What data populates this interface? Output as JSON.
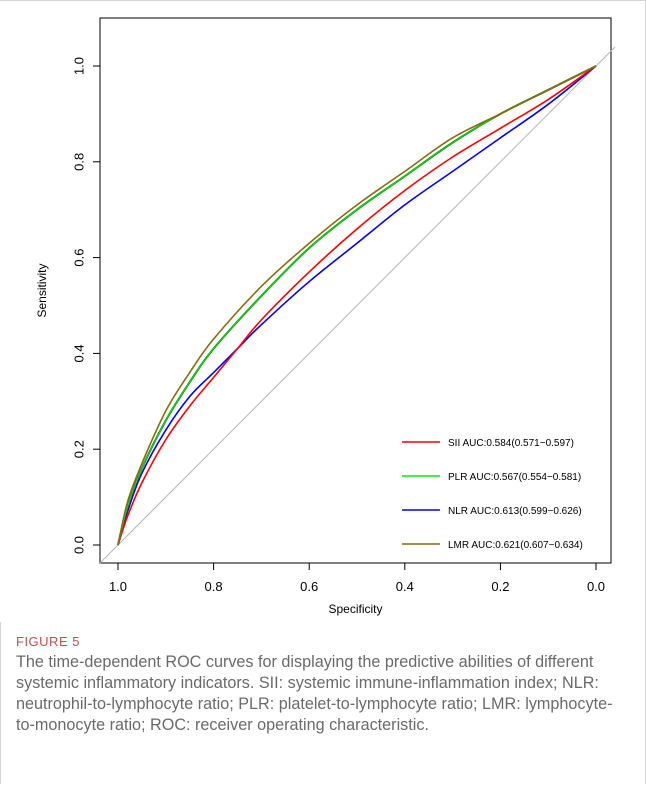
{
  "figure": {
    "label": "FIGURE 5",
    "caption": "The time-dependent ROC curves for displaying the predictive abilities of different systemic inflammatory indicators. SII: systemic immune-inflammation index; NLR: neutrophil-to-lymphocyte ratio; PLR: platelet-to-lymphocyte ratio; LMR: lymphocyte-to-monocyte ratio; ROC: receiver operating characteristic."
  },
  "chart_data": {
    "type": "line",
    "title": "",
    "xlabel": "Specificity",
    "ylabel": "Sensitivity",
    "xlim": [
      1.0,
      0.0
    ],
    "ylim": [
      0.0,
      1.0
    ],
    "x_reversed": true,
    "grid": false,
    "legend_position": "bottom-right",
    "x_ticks": [
      "1.0",
      "0.8",
      "0.6",
      "0.4",
      "0.2",
      "0.0"
    ],
    "y_ticks": [
      "0.0",
      "0.2",
      "0.4",
      "0.6",
      "0.8",
      "1.0"
    ],
    "reference_line": {
      "from": [
        1.0,
        0.0
      ],
      "to": [
        0.0,
        1.0
      ],
      "color": "#b4b4b4"
    },
    "series": [
      {
        "name": "SII AUC:0.584(0.571−0.597)",
        "color": "#ff0000",
        "x": [
          1.0,
          0.98,
          0.95,
          0.9,
          0.85,
          0.8,
          0.75,
          0.7,
          0.6,
          0.5,
          0.4,
          0.3,
          0.2,
          0.1,
          0.0
        ],
        "y": [
          0.0,
          0.06,
          0.13,
          0.22,
          0.29,
          0.35,
          0.41,
          0.47,
          0.57,
          0.66,
          0.74,
          0.81,
          0.87,
          0.93,
          1.0
        ]
      },
      {
        "name": "PLR AUC:0.567(0.554−0.581)",
        "color": "#00ee00",
        "x": [
          1.0,
          0.98,
          0.95,
          0.9,
          0.85,
          0.8,
          0.7,
          0.6,
          0.5,
          0.4,
          0.3,
          0.2,
          0.1,
          0.0
        ],
        "y": [
          0.0,
          0.08,
          0.16,
          0.26,
          0.34,
          0.41,
          0.52,
          0.62,
          0.7,
          0.77,
          0.84,
          0.9,
          0.95,
          1.0
        ]
      },
      {
        "name": "NLR AUC:0.613(0.599−0.626)",
        "color": "#0000ff",
        "x": [
          1.0,
          0.98,
          0.95,
          0.9,
          0.85,
          0.8,
          0.75,
          0.7,
          0.6,
          0.5,
          0.4,
          0.3,
          0.2,
          0.1,
          0.0
        ],
        "y": [
          0.0,
          0.07,
          0.15,
          0.24,
          0.31,
          0.36,
          0.41,
          0.46,
          0.55,
          0.63,
          0.71,
          0.78,
          0.85,
          0.92,
          1.0
        ]
      },
      {
        "name": "LMR AUC:0.621(0.607−0.634)",
        "color": "#8b6914",
        "x": [
          1.0,
          0.98,
          0.95,
          0.9,
          0.85,
          0.8,
          0.7,
          0.6,
          0.5,
          0.4,
          0.3,
          0.2,
          0.1,
          0.0
        ],
        "y": [
          0.0,
          0.09,
          0.17,
          0.28,
          0.36,
          0.43,
          0.54,
          0.63,
          0.71,
          0.78,
          0.85,
          0.9,
          0.95,
          1.0
        ]
      }
    ],
    "extra_series_color": {
      "dark_green": "#1e6e1e"
    }
  }
}
